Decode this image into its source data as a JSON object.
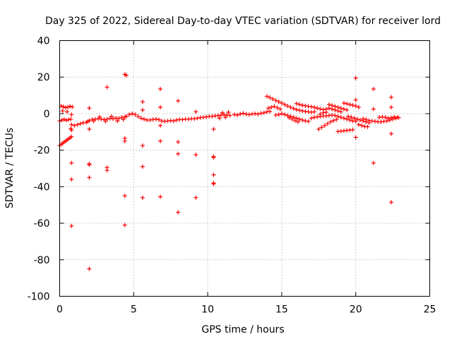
{
  "chart_data": {
    "type": "scatter",
    "title": "Day 325 of 2022, Sidereal Day-to-day VTEC variation (SDTVAR) for receiver lord",
    "xlabel": "GPS time / hours",
    "ylabel": "SDTVAR / TECUs",
    "xlim": [
      0,
      25
    ],
    "ylim": [
      -100,
      40
    ],
    "xticks": [
      0,
      5,
      10,
      15,
      20,
      25
    ],
    "yticks": [
      -100,
      -80,
      -60,
      -40,
      -20,
      0,
      20,
      40
    ],
    "grid": true,
    "marker": "+",
    "color": "#ff0000",
    "series": [
      {
        "name": "SDTVAR",
        "points": [
          [
            0.0,
            -17.5
          ],
          [
            0.1,
            -16.8
          ],
          [
            0.2,
            -16.2
          ],
          [
            0.3,
            -15.6
          ],
          [
            0.4,
            -15.0
          ],
          [
            0.5,
            -14.4
          ],
          [
            0.6,
            -13.8
          ],
          [
            0.7,
            -13.2
          ],
          [
            0.8,
            -12.6
          ],
          [
            0.0,
            -4.0
          ],
          [
            0.15,
            -3.5
          ],
          [
            0.3,
            -3.2
          ],
          [
            0.45,
            -3.6
          ],
          [
            0.6,
            -3.3
          ],
          [
            0.75,
            -3.0
          ],
          [
            0.1,
            4.2
          ],
          [
            0.25,
            3.8
          ],
          [
            0.4,
            3.3
          ],
          [
            0.55,
            3.6
          ],
          [
            0.7,
            4.0
          ],
          [
            0.85,
            3.7
          ],
          [
            0.2,
            1.5
          ],
          [
            0.5,
            1.0
          ],
          [
            0.8,
            -0.5
          ],
          [
            0.8,
            -6.0
          ],
          [
            0.8,
            -9.0
          ],
          [
            0.75,
            -8.2
          ],
          [
            1.0,
            -6.5
          ],
          [
            1.2,
            -6.0
          ],
          [
            1.4,
            -5.5
          ],
          [
            1.6,
            -5.0
          ],
          [
            1.8,
            -4.8
          ],
          [
            1.9,
            -4.3
          ],
          [
            2.0,
            -3.8
          ],
          [
            2.2,
            -3.2
          ],
          [
            2.4,
            -3.0
          ],
          [
            2.6,
            -2.8
          ],
          [
            2.8,
            -3.0
          ],
          [
            3.0,
            -3.2
          ],
          [
            3.2,
            -3.0
          ],
          [
            3.4,
            -2.6
          ],
          [
            3.6,
            -2.8
          ],
          [
            3.8,
            -2.4
          ],
          [
            4.0,
            -2.6
          ],
          [
            4.2,
            -2.0
          ],
          [
            4.4,
            -1.8
          ],
          [
            2.3,
            -4.0
          ],
          [
            2.7,
            -1.8
          ],
          [
            3.1,
            -4.2
          ],
          [
            3.5,
            -1.5
          ],
          [
            3.9,
            -4.0
          ],
          [
            4.3,
            -3.2
          ],
          [
            4.5,
            -1.5
          ],
          [
            4.7,
            -0.5
          ],
          [
            4.9,
            0.0
          ],
          [
            5.1,
            -0.5
          ],
          [
            5.3,
            -1.5
          ],
          [
            5.5,
            -2.5
          ],
          [
            5.7,
            -3.0
          ],
          [
            5.9,
            -3.5
          ],
          [
            6.1,
            -3.5
          ],
          [
            6.3,
            -3.2
          ],
          [
            6.5,
            -3.0
          ],
          [
            6.7,
            -3.3
          ],
          [
            6.9,
            -4.0
          ],
          [
            7.1,
            -4.2
          ],
          [
            7.3,
            -4.0
          ],
          [
            7.5,
            -3.8
          ],
          [
            7.7,
            -4.0
          ],
          [
            7.9,
            -3.5
          ],
          [
            8.1,
            -3.2
          ],
          [
            8.3,
            -3.3
          ],
          [
            8.5,
            -3.0
          ],
          [
            8.7,
            -3.0
          ],
          [
            8.9,
            -2.8
          ],
          [
            9.1,
            -2.8
          ],
          [
            9.3,
            -2.5
          ],
          [
            9.5,
            -2.2
          ],
          [
            9.7,
            -2.0
          ],
          [
            9.9,
            -1.8
          ],
          [
            10.1,
            -1.5
          ],
          [
            10.3,
            -1.5
          ],
          [
            10.5,
            -1.2
          ],
          [
            10.7,
            -1.0
          ],
          [
            10.9,
            -0.8
          ],
          [
            11.1,
            -0.5
          ],
          [
            11.3,
            -0.8
          ],
          [
            11.5,
            -1.0
          ],
          [
            10.8,
            -2.5
          ],
          [
            11.0,
            0.5
          ],
          [
            11.2,
            -2.0
          ],
          [
            11.4,
            0.8
          ],
          [
            11.8,
            -0.5
          ],
          [
            12.0,
            -0.8
          ],
          [
            12.2,
            -0.2
          ],
          [
            12.4,
            0.2
          ],
          [
            12.6,
            -0.3
          ],
          [
            12.8,
            -0.5
          ],
          [
            13.0,
            -0.2
          ],
          [
            13.2,
            0.0
          ],
          [
            13.4,
            -0.3
          ],
          [
            13.6,
            0.2
          ],
          [
            13.8,
            0.5
          ],
          [
            14.0,
            1.0
          ],
          [
            14.2,
            1.2
          ],
          [
            14.0,
            9.5
          ],
          [
            14.2,
            8.8
          ],
          [
            14.4,
            8.0
          ],
          [
            14.6,
            7.2
          ],
          [
            14.8,
            6.5
          ],
          [
            15.0,
            5.8
          ],
          [
            15.2,
            5.0
          ],
          [
            15.4,
            4.2
          ],
          [
            15.6,
            3.5
          ],
          [
            15.8,
            2.8
          ],
          [
            16.0,
            2.2
          ],
          [
            16.2,
            1.8
          ],
          [
            16.4,
            1.5
          ],
          [
            16.6,
            1.2
          ],
          [
            16.8,
            1.0
          ],
          [
            17.0,
            0.8
          ],
          [
            17.2,
            1.0
          ],
          [
            14.1,
            3.0
          ],
          [
            14.3,
            3.5
          ],
          [
            14.5,
            4.0
          ],
          [
            14.7,
            3.2
          ],
          [
            14.9,
            2.5
          ],
          [
            14.6,
            -0.8
          ],
          [
            14.8,
            -0.5
          ],
          [
            15.0,
            0.0
          ],
          [
            15.2,
            -0.5
          ],
          [
            15.4,
            -1.0
          ],
          [
            15.6,
            -1.5
          ],
          [
            15.8,
            -2.0
          ],
          [
            16.0,
            -2.5
          ],
          [
            16.2,
            -3.0
          ],
          [
            16.4,
            -3.5
          ],
          [
            16.6,
            -4.0
          ],
          [
            16.8,
            -4.2
          ],
          [
            15.5,
            -2.2
          ],
          [
            15.7,
            -3.0
          ],
          [
            15.9,
            -3.8
          ],
          [
            16.1,
            -4.5
          ],
          [
            16.0,
            5.5
          ],
          [
            16.2,
            5.0
          ],
          [
            16.4,
            4.6
          ],
          [
            16.6,
            4.3
          ],
          [
            16.8,
            4.0
          ],
          [
            17.0,
            3.8
          ],
          [
            17.2,
            3.5
          ],
          [
            17.4,
            3.0
          ],
          [
            17.6,
            2.6
          ],
          [
            17.8,
            2.2
          ],
          [
            17.0,
            -2.5
          ],
          [
            17.2,
            -2.0
          ],
          [
            17.4,
            -1.8
          ],
          [
            17.6,
            -1.5
          ],
          [
            17.8,
            -1.3
          ],
          [
            18.0,
            -1.2
          ],
          [
            18.2,
            -1.0
          ],
          [
            18.4,
            -0.8
          ],
          [
            18.6,
            -1.0
          ],
          [
            18.8,
            -1.5
          ],
          [
            19.0,
            -2.0
          ],
          [
            19.2,
            -2.5
          ],
          [
            19.4,
            -3.0
          ],
          [
            19.6,
            -3.5
          ],
          [
            19.8,
            -4.0
          ],
          [
            20.0,
            -4.2
          ],
          [
            17.6,
            -0.3
          ],
          [
            17.8,
            0.5
          ],
          [
            18.0,
            0.8
          ],
          [
            17.5,
            -8.5
          ],
          [
            17.7,
            -7.5
          ],
          [
            17.9,
            -6.5
          ],
          [
            18.1,
            -5.5
          ],
          [
            18.3,
            -4.5
          ],
          [
            18.5,
            -3.8
          ],
          [
            18.7,
            -3.2
          ],
          [
            18.2,
            5.0
          ],
          [
            18.4,
            4.5
          ],
          [
            18.6,
            4.0
          ],
          [
            18.8,
            3.5
          ],
          [
            19.0,
            3.0
          ],
          [
            19.2,
            2.5
          ],
          [
            19.4,
            2.0
          ],
          [
            18.0,
            2.5
          ],
          [
            18.2,
            3.0
          ],
          [
            18.4,
            2.5
          ],
          [
            18.6,
            2.0
          ],
          [
            18.8,
            1.5
          ],
          [
            19.0,
            1.0
          ],
          [
            18.8,
            -9.8
          ],
          [
            19.0,
            -9.6
          ],
          [
            19.2,
            -9.4
          ],
          [
            19.4,
            -9.2
          ],
          [
            19.6,
            -9.0
          ],
          [
            19.8,
            -8.8
          ],
          [
            19.2,
            5.8
          ],
          [
            19.4,
            5.4
          ],
          [
            19.6,
            5.0
          ],
          [
            19.8,
            4.6
          ],
          [
            20.0,
            4.2
          ],
          [
            20.2,
            3.5
          ],
          [
            19.5,
            -1.5
          ],
          [
            19.7,
            -2.0
          ],
          [
            19.9,
            -2.5
          ],
          [
            20.1,
            -3.0
          ],
          [
            20.3,
            -3.5
          ],
          [
            20.5,
            -4.0
          ],
          [
            20.7,
            -4.5
          ],
          [
            20.9,
            -5.0
          ],
          [
            20.2,
            -6.0
          ],
          [
            20.4,
            -6.5
          ],
          [
            20.6,
            -7.0
          ],
          [
            20.8,
            -7.2
          ],
          [
            20.5,
            -2.8
          ],
          [
            20.7,
            -3.2
          ],
          [
            20.9,
            -3.8
          ],
          [
            21.1,
            -4.0
          ],
          [
            21.3,
            -4.2
          ],
          [
            21.5,
            -4.5
          ],
          [
            21.7,
            -4.5
          ],
          [
            21.9,
            -4.2
          ],
          [
            22.1,
            -4.0
          ],
          [
            22.3,
            -3.5
          ],
          [
            22.5,
            -3.0
          ],
          [
            22.7,
            -2.5
          ],
          [
            22.9,
            -2.2
          ],
          [
            21.6,
            -2.0
          ],
          [
            21.8,
            -1.8
          ],
          [
            22.0,
            -2.0
          ],
          [
            22.2,
            -2.5
          ],
          [
            22.4,
            -2.2
          ],
          [
            22.6,
            -1.8
          ],
          [
            22.8,
            -2.0
          ],
          [
            0.8,
            -27.0
          ],
          [
            0.8,
            -36.0
          ],
          [
            0.8,
            -61.5
          ],
          [
            2.0,
            -85.0
          ],
          [
            2.0,
            -27.5
          ],
          [
            2.0,
            -28.0
          ],
          [
            2.0,
            -35.0
          ],
          [
            2.0,
            3.0
          ],
          [
            2.0,
            -8.5
          ],
          [
            3.2,
            -29.5
          ],
          [
            3.2,
            -31.0
          ],
          [
            3.2,
            14.5
          ],
          [
            4.4,
            21.5
          ],
          [
            4.5,
            21.0
          ],
          [
            4.4,
            -13.5
          ],
          [
            4.4,
            -15.0
          ],
          [
            4.4,
            -45.0
          ],
          [
            4.4,
            -61.0
          ],
          [
            5.6,
            6.5
          ],
          [
            5.6,
            2.0
          ],
          [
            5.6,
            -17.5
          ],
          [
            5.6,
            -29.0
          ],
          [
            5.6,
            -46.0
          ],
          [
            6.8,
            13.5
          ],
          [
            6.8,
            3.5
          ],
          [
            6.8,
            -6.5
          ],
          [
            6.8,
            -15.0
          ],
          [
            6.8,
            -45.5
          ],
          [
            8.0,
            7.0
          ],
          [
            8.0,
            -15.5
          ],
          [
            8.0,
            -22.0
          ],
          [
            8.0,
            -54.0
          ],
          [
            9.2,
            1.0
          ],
          [
            9.2,
            -22.5
          ],
          [
            9.2,
            -46.0
          ],
          [
            10.4,
            -8.5
          ],
          [
            10.4,
            -23.5
          ],
          [
            10.4,
            -24.0
          ],
          [
            10.4,
            -33.5
          ],
          [
            10.4,
            -38.0
          ],
          [
            10.4,
            -38.5
          ],
          [
            20.0,
            19.5
          ],
          [
            20.0,
            7.5
          ],
          [
            20.0,
            -13.0
          ],
          [
            21.2,
            13.5
          ],
          [
            21.2,
            2.5
          ],
          [
            21.2,
            -27.0
          ],
          [
            22.4,
            9.0
          ],
          [
            22.4,
            3.5
          ],
          [
            22.4,
            -11.0
          ],
          [
            22.4,
            -48.5
          ]
        ]
      }
    ]
  }
}
